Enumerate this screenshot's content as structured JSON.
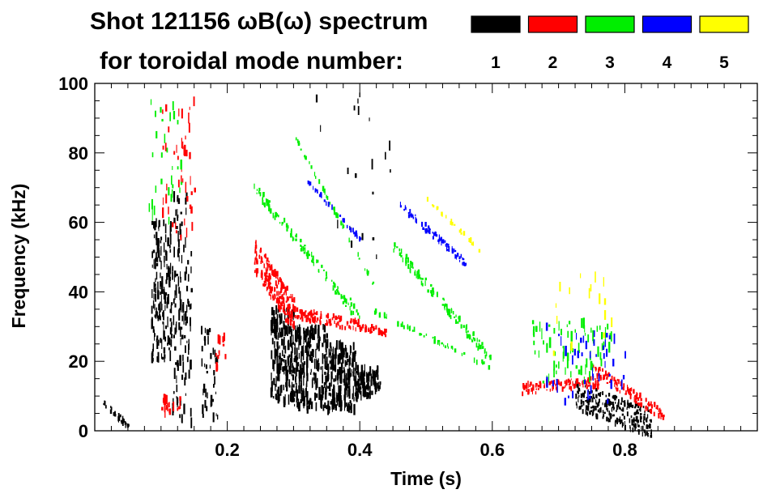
{
  "chart_data": {
    "type": "spectrogram",
    "title_line1": "Shot 121156 ωB(ω) spectrum",
    "title_line2": "for toroidal mode number:",
    "xlabel": "Time (s)",
    "ylabel": "Frequency (kHz)",
    "xlim": [
      0.0,
      1.0
    ],
    "ylim": [
      0,
      100
    ],
    "x_ticks": [
      {
        "value": 0.2,
        "label": "0.2"
      },
      {
        "value": 0.4,
        "label": "0.4"
      },
      {
        "value": 0.6,
        "label": "0.6"
      },
      {
        "value": 0.8,
        "label": "0.8"
      }
    ],
    "y_ticks": [
      {
        "value": 0,
        "label": "0"
      },
      {
        "value": 20,
        "label": "20"
      },
      {
        "value": 40,
        "label": "40"
      },
      {
        "value": 60,
        "label": "60"
      },
      {
        "value": 80,
        "label": "80"
      },
      {
        "value": 100,
        "label": "100"
      }
    ],
    "legend": [
      {
        "mode": "1",
        "color": "#000000"
      },
      {
        "mode": "2",
        "color": "#ff0000"
      },
      {
        "mode": "3",
        "color": "#00ee00"
      },
      {
        "mode": "4",
        "color": "#0000ff"
      },
      {
        "mode": "5",
        "color": "#ffff00"
      }
    ],
    "features": [
      {
        "mode": 1,
        "shape": "blob",
        "t": [
          0.085,
          0.115
        ],
        "f": [
          20,
          60
        ],
        "n": 160
      },
      {
        "mode": 1,
        "shape": "blob",
        "t": [
          0.115,
          0.145
        ],
        "f": [
          2,
          68
        ],
        "n": 120
      },
      {
        "mode": 1,
        "shape": "blob",
        "t": [
          0.16,
          0.185
        ],
        "f": [
          2,
          30
        ],
        "n": 40
      },
      {
        "mode": 1,
        "shape": "blob",
        "t": [
          0.265,
          0.3
        ],
        "f": [
          8,
          35
        ],
        "n": 190
      },
      {
        "mode": 1,
        "shape": "blob",
        "t": [
          0.3,
          0.35
        ],
        "f": [
          6,
          30
        ],
        "n": 230
      },
      {
        "mode": 1,
        "shape": "blob",
        "t": [
          0.35,
          0.395
        ],
        "f": [
          6,
          25
        ],
        "n": 190
      },
      {
        "mode": 1,
        "shape": "blob",
        "t": [
          0.395,
          0.43
        ],
        "f": [
          10,
          18
        ],
        "n": 90
      },
      {
        "mode": 1,
        "shape": "line",
        "t": [
          0.725,
          0.84
        ],
        "f": [
          10,
          2
        ],
        "width": 8,
        "n": 230
      },
      {
        "mode": 1,
        "shape": "line",
        "t": [
          0.01,
          0.05
        ],
        "f": [
          9,
          1
        ],
        "width": 2,
        "n": 30
      },
      {
        "mode": 1,
        "shape": "blob",
        "t": [
          0.33,
          0.45
        ],
        "f": [
          40,
          100
        ],
        "n": 20
      },
      {
        "mode": 2,
        "shape": "line",
        "t": [
          0.24,
          0.3
        ],
        "f": [
          50,
          33
        ],
        "width": 10,
        "n": 230
      },
      {
        "mode": 2,
        "shape": "line",
        "t": [
          0.3,
          0.4
        ],
        "f": [
          34,
          30
        ],
        "width": 3,
        "n": 110
      },
      {
        "mode": 2,
        "shape": "line",
        "t": [
          0.4,
          0.44
        ],
        "f": [
          30,
          28
        ],
        "width": 2,
        "n": 40
      },
      {
        "mode": 2,
        "shape": "blob",
        "t": [
          0.1,
          0.15
        ],
        "f": [
          55,
          95
        ],
        "n": 45
      },
      {
        "mode": 2,
        "shape": "blob",
        "t": [
          0.1,
          0.13
        ],
        "f": [
          5,
          10
        ],
        "n": 18
      },
      {
        "mode": 2,
        "shape": "line",
        "t": [
          0.64,
          0.76
        ],
        "f": [
          12,
          14
        ],
        "width": 3,
        "n": 110
      },
      {
        "mode": 2,
        "shape": "line",
        "t": [
          0.75,
          0.86
        ],
        "f": [
          18,
          4
        ],
        "width": 3,
        "n": 110
      },
      {
        "mode": 2,
        "shape": "blob",
        "t": [
          0.18,
          0.2
        ],
        "f": [
          18,
          28
        ],
        "n": 14
      },
      {
        "mode": 3,
        "shape": "line",
        "t": [
          0.24,
          0.4
        ],
        "f": [
          70,
          32
        ],
        "width": 3,
        "n": 110
      },
      {
        "mode": 3,
        "shape": "line",
        "t": [
          0.45,
          0.6
        ],
        "f": [
          53,
          20
        ],
        "width": 3,
        "n": 120
      },
      {
        "mode": 3,
        "shape": "line",
        "t": [
          0.3,
          0.42
        ],
        "f": [
          85,
          42
        ],
        "width": 1,
        "n": 45
      },
      {
        "mode": 3,
        "shape": "line",
        "t": [
          0.36,
          0.6
        ],
        "f": [
          40,
          18
        ],
        "width": 1,
        "n": 55
      },
      {
        "mode": 3,
        "shape": "blob",
        "t": [
          0.66,
          0.78
        ],
        "f": [
          14,
          32
        ],
        "n": 80
      },
      {
        "mode": 3,
        "shape": "blob",
        "t": [
          0.08,
          0.13
        ],
        "f": [
          60,
          95
        ],
        "n": 30
      },
      {
        "mode": 4,
        "shape": "line",
        "t": [
          0.46,
          0.56
        ],
        "f": [
          65,
          48
        ],
        "width": 2,
        "n": 80
      },
      {
        "mode": 4,
        "shape": "line",
        "t": [
          0.32,
          0.4
        ],
        "f": [
          72,
          55
        ],
        "width": 1,
        "n": 30
      },
      {
        "mode": 4,
        "shape": "blob",
        "t": [
          0.68,
          0.8
        ],
        "f": [
          8,
          30
        ],
        "n": 45
      },
      {
        "mode": 5,
        "shape": "line",
        "t": [
          0.5,
          0.58
        ],
        "f": [
          67,
          52
        ],
        "width": 1,
        "n": 25
      },
      {
        "mode": 5,
        "shape": "blob",
        "t": [
          0.69,
          0.78
        ],
        "f": [
          20,
          45
        ],
        "n": 16
      }
    ]
  }
}
